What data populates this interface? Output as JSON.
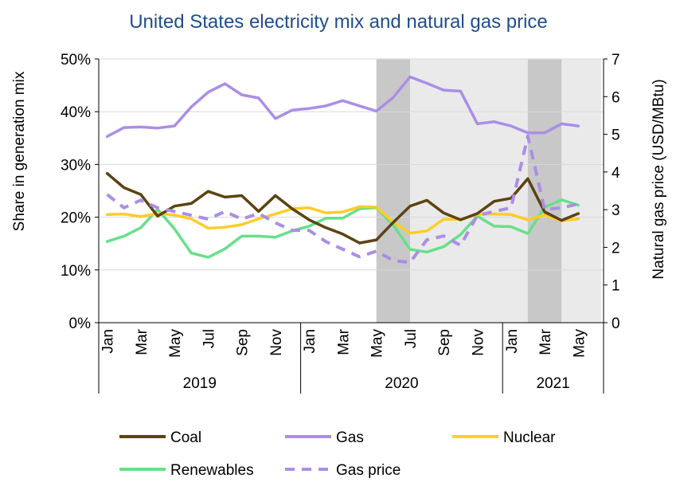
{
  "chart_data": {
    "type": "line",
    "title": "United States electricity mix and natural gas price",
    "title_color": "#1f4e8c",
    "ylabel": "Share in generation mix",
    "y2label": "Natural gas price (USD/MBtu)",
    "ylim": [
      0,
      50
    ],
    "y_ticks": [
      "0%",
      "10%",
      "20%",
      "30%",
      "40%",
      "50%"
    ],
    "y2lim": [
      0,
      7
    ],
    "y2_ticks": [
      "0",
      "1",
      "2",
      "3",
      "4",
      "5",
      "6",
      "7"
    ],
    "x": [
      "2019-01",
      "2019-02",
      "2019-03",
      "2019-04",
      "2019-05",
      "2019-06",
      "2019-07",
      "2019-08",
      "2019-09",
      "2019-10",
      "2019-11",
      "2019-12",
      "2020-01",
      "2020-02",
      "2020-03",
      "2020-04",
      "2020-05",
      "2020-06",
      "2020-07",
      "2020-08",
      "2020-09",
      "2020-10",
      "2020-11",
      "2020-12",
      "2021-01",
      "2021-02",
      "2021-03",
      "2021-04",
      "2021-05"
    ],
    "month_labels": [
      "Jan",
      "",
      "Mar",
      "",
      "May",
      "",
      "Jul",
      "",
      "Sep",
      "",
      "Nov",
      "",
      "Jan",
      "",
      "Mar",
      "",
      "May",
      "",
      "Jul",
      "",
      "Sep",
      "",
      "Nov",
      "",
      "Jan",
      "",
      "Mar",
      "",
      "May"
    ],
    "years": [
      "2019",
      "2020",
      "2021"
    ],
    "shaded_periods": [
      {
        "from": "2020-05",
        "to": "2020-07",
        "tone": "dark"
      },
      {
        "from": "2020-07",
        "to": "2021-06",
        "tone": "light"
      },
      {
        "from": "2021-02",
        "to": "2021-04",
        "tone": "dark"
      }
    ],
    "series": [
      {
        "name": "Coal",
        "axis": "left",
        "color": "#5c4313",
        "dashed": false,
        "values": [
          28.3,
          25.6,
          24.3,
          20.2,
          22.1,
          22.6,
          24.9,
          23.8,
          24.1,
          21.1,
          24.1,
          21.6,
          19.5,
          18.0,
          16.8,
          15.1,
          15.7,
          19.0,
          22.1,
          23.2,
          20.8,
          19.5,
          20.7,
          23.0,
          23.6,
          27.3,
          21.0,
          19.4,
          20.7
        ]
      },
      {
        "name": "Gas",
        "axis": "left",
        "color": "#ab8ee6",
        "dashed": false,
        "values": [
          35.3,
          37.0,
          37.1,
          36.9,
          37.3,
          40.9,
          43.7,
          45.3,
          43.2,
          42.6,
          38.7,
          40.3,
          40.6,
          41.1,
          42.1,
          41.1,
          40.1,
          42.7,
          46.6,
          45.4,
          44.1,
          43.9,
          37.7,
          38.1,
          37.3,
          36.0,
          36.0,
          37.7,
          37.3
        ]
      },
      {
        "name": "Nuclear",
        "axis": "left",
        "color": "#ffcc29",
        "dashed": false,
        "values": [
          20.5,
          20.6,
          20.1,
          20.7,
          20.4,
          19.7,
          17.9,
          18.1,
          18.6,
          19.7,
          20.6,
          21.6,
          21.8,
          20.8,
          21.0,
          22.0,
          21.9,
          19.1,
          17.0,
          17.4,
          19.6,
          19.6,
          20.5,
          20.6,
          20.5,
          19.5,
          20.4,
          19.3,
          19.7
        ]
      },
      {
        "name": "Renewables",
        "axis": "left",
        "color": "#66e08a",
        "dashed": false,
        "values": [
          15.4,
          16.4,
          18.0,
          21.5,
          17.8,
          13.2,
          12.4,
          14.0,
          16.4,
          16.4,
          16.2,
          17.4,
          18.3,
          19.8,
          19.8,
          21.6,
          21.8,
          18.5,
          13.9,
          13.4,
          14.4,
          16.7,
          20.2,
          18.3,
          18.2,
          16.9,
          21.9,
          23.3,
          22.3
        ]
      },
      {
        "name": "Gas price",
        "axis": "right",
        "color": "#ab8ee6",
        "dashed": true,
        "values": [
          3.4,
          3.05,
          3.25,
          3.05,
          2.95,
          2.85,
          2.75,
          2.95,
          2.75,
          2.9,
          2.65,
          2.45,
          2.45,
          2.15,
          1.95,
          1.75,
          1.9,
          1.65,
          1.6,
          2.2,
          2.3,
          2.05,
          2.85,
          2.95,
          3.05,
          4.95,
          3.0,
          3.05,
          3.15
        ]
      }
    ],
    "legend": {
      "placement": "bottom"
    },
    "grid": true
  }
}
